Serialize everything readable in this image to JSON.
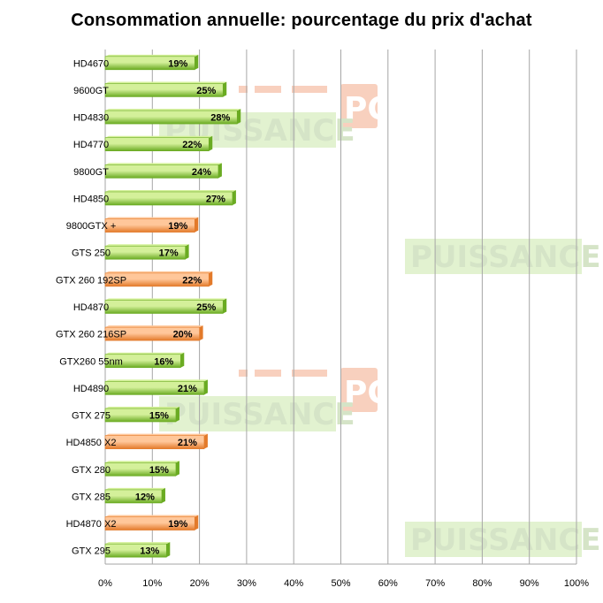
{
  "chart_data": {
    "type": "bar",
    "orientation": "horizontal",
    "title": "Consommation annuelle: pourcentage du prix d'achat",
    "categories": [
      "HD4670",
      "9600GT",
      "HD4830",
      "HD4770",
      "9800GT",
      "HD4850",
      "9800GTX +",
      "GTS 250",
      "GTX 260 192SP",
      "HD4870",
      "GTX 260 216SP",
      "GTX260 55nm",
      "HD4890",
      "GTX 275",
      "HD4850 X2",
      "GTX 280",
      "GTX 285",
      "HD4870 X2",
      "GTX 295"
    ],
    "values": [
      19,
      25,
      28,
      22,
      24,
      27,
      19,
      17,
      22,
      25,
      20,
      16,
      21,
      15,
      21,
      15,
      12,
      19,
      13
    ],
    "data_labels": [
      "19%",
      "25%",
      "28%",
      "22%",
      "24%",
      "27%",
      "19%",
      "17%",
      "22%",
      "25%",
      "20%",
      "16%",
      "21%",
      "15%",
      "21%",
      "15%",
      "12%",
      "19%",
      "13%"
    ],
    "bar_colors": [
      "green",
      "green",
      "green",
      "green",
      "green",
      "green",
      "orange",
      "green",
      "orange",
      "green",
      "orange",
      "green",
      "green",
      "green",
      "orange",
      "green",
      "green",
      "orange",
      "green"
    ],
    "xlim": [
      0,
      100
    ],
    "xticks": [
      "0%",
      "10%",
      "20%",
      "30%",
      "40%",
      "50%",
      "60%",
      "70%",
      "80%",
      "90%",
      "100%"
    ],
    "grid": true,
    "xlabel": "",
    "ylabel": ""
  },
  "colors": {
    "green_light": "#d4f09a",
    "green_dark": "#6aab22",
    "orange_light": "#ffc79a",
    "orange_dark": "#e37a2a",
    "grid": "#a6a6a6"
  },
  "watermark": {
    "word": "PUISSANCE",
    "badge": "PC"
  }
}
